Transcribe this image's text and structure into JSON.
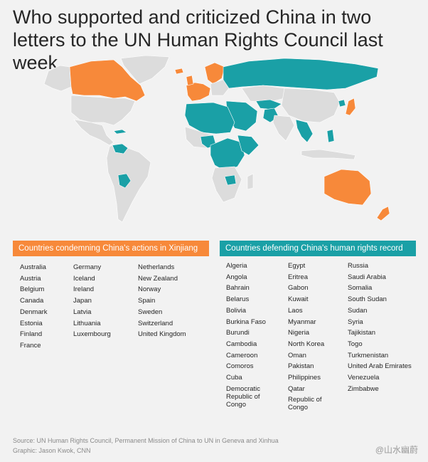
{
  "title": "Who supported and criticized China in two letters to the UN Human Rights Council last week",
  "colors": {
    "condemn": "#f7893a",
    "defend": "#1aa0a6",
    "neutral": "#dcdcdc",
    "background": "#f2f2f2"
  },
  "legend": {
    "condemn_label": "Countries condemning China's actions in Xinjiang",
    "defend_label": "Countries defending China's human rights record"
  },
  "condemning": [
    [
      "Australia",
      "Austria",
      "Belgium",
      "Canada",
      "Denmark",
      "Estonia",
      "Finland",
      "France"
    ],
    [
      "Germany",
      "Iceland",
      "Ireland",
      "Japan",
      "Latvia",
      "Lithuania",
      "Luxembourg"
    ],
    [
      "Netherlands",
      "New Zealand",
      "Norway",
      "Spain",
      "Sweden",
      "Switzerland",
      "United Kingdom"
    ]
  ],
  "defending": [
    [
      "Algeria",
      "Angola",
      "Bahrain",
      "Belarus",
      "Bolivia",
      "Burkina Faso",
      "Burundi",
      "Cambodia",
      "Cameroon",
      "Comoros",
      "Cuba",
      "Democratic Republic of Congo"
    ],
    [
      "Egypt",
      "Eritrea",
      "Gabon",
      "Kuwait",
      "Laos",
      "Myanmar",
      "Nigeria",
      "North Korea",
      "Oman",
      "Pakistan",
      "Philippines",
      "Qatar",
      "Republic of Congo"
    ],
    [
      "Russia",
      "Saudi Arabia",
      "Somalia",
      "South Sudan",
      "Sudan",
      "Syria",
      "Tajikistan",
      "Togo",
      "Turkmenistan",
      "United Arab Emirates",
      "Venezuela",
      "Zimbabwe"
    ]
  ],
  "footer": {
    "source": "Source: UN Human Rights Council, Permanent Mission of China to UN in Geneva and Xinhua",
    "graphic": "Graphic: Jason Kwok, CNN"
  },
  "watermark": "@山水幽蔚"
}
